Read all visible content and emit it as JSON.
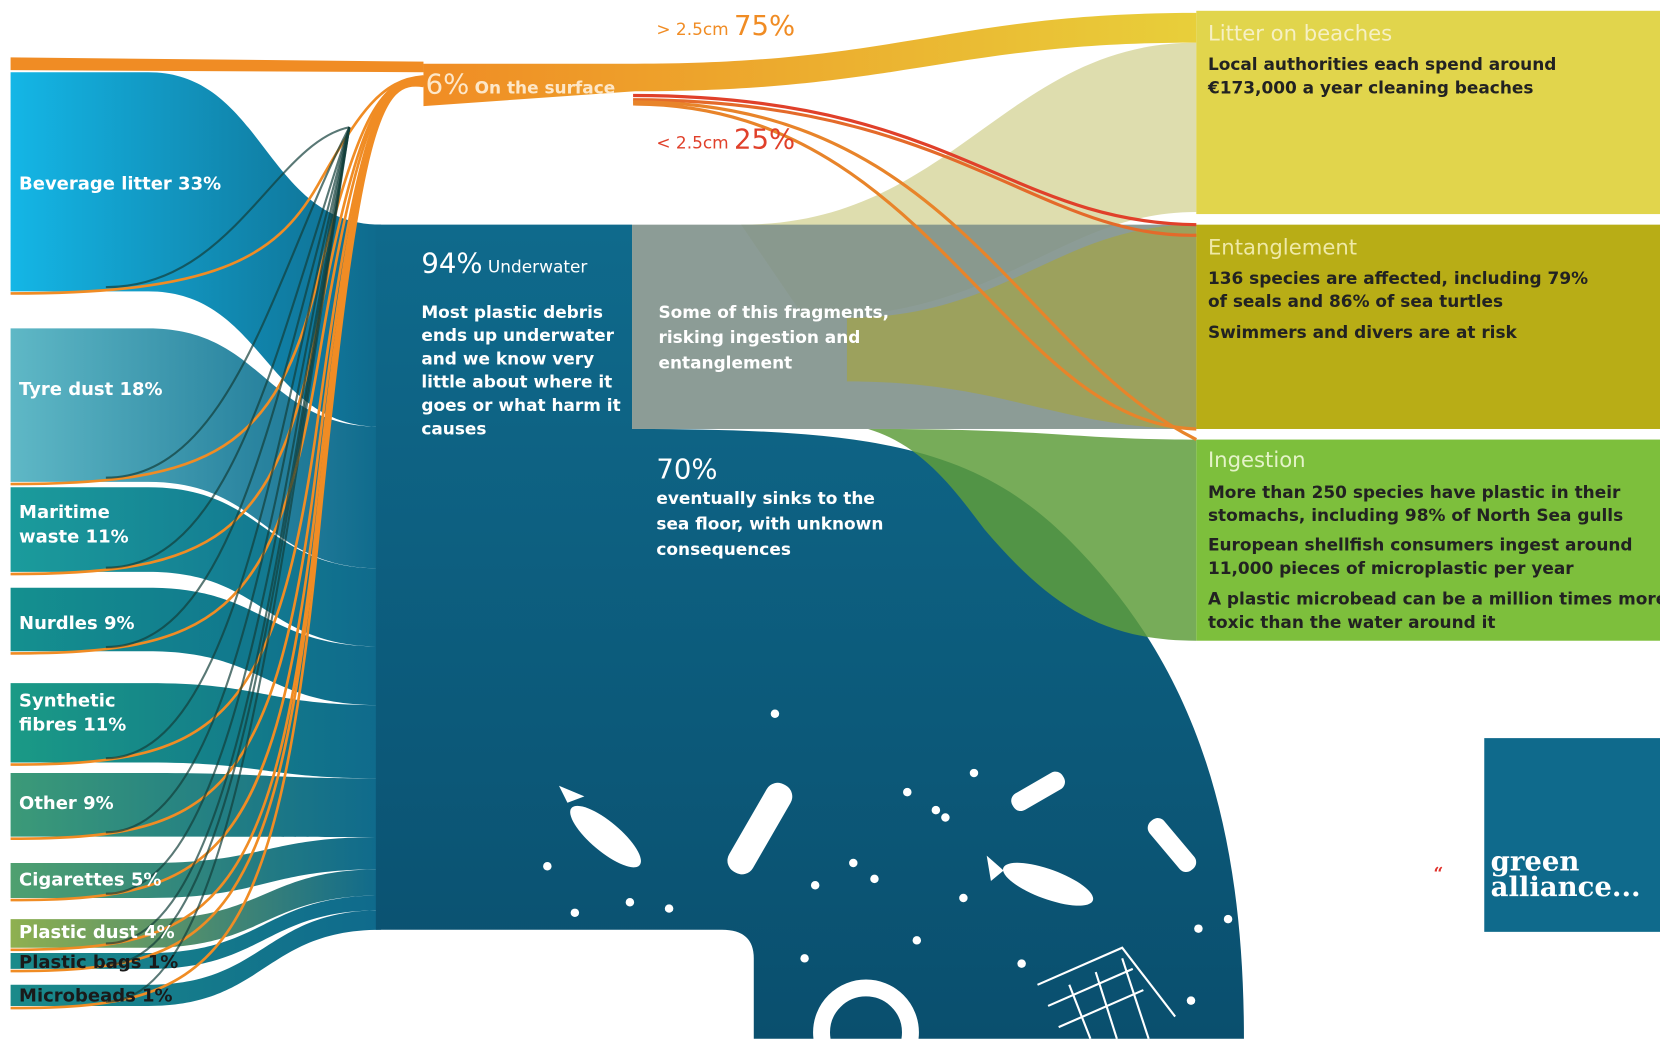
{
  "sources": [
    {
      "lines": [
        "Beverage litter 33%"
      ]
    },
    {
      "lines": [
        "Tyre dust 18%"
      ]
    },
    {
      "lines": [
        "Maritime",
        "waste 11%"
      ]
    },
    {
      "lines": [
        "Nurdles 9%"
      ]
    },
    {
      "lines": [
        "Synthetic",
        "fibres 11%"
      ]
    },
    {
      "lines": [
        "Other 9%"
      ]
    },
    {
      "lines": [
        "Cigarettes 5%"
      ]
    },
    {
      "lines": [
        "Plastic dust 4%"
      ]
    },
    {
      "lines": [
        "Plastic bags 1%"
      ]
    },
    {
      "lines": [
        "Microbeads 1%"
      ]
    }
  ],
  "surface": {
    "percent": "6%",
    "label": "On the surface"
  },
  "large": {
    "size": "> 2.5cm",
    "percent": "75%"
  },
  "small": {
    "size": "< 2.5cm",
    "percent": "25%"
  },
  "underwater": {
    "percent": "94%",
    "label": "Underwater",
    "text": [
      "Most plastic debris",
      "ends up underwater",
      "and we know very",
      "little about where it",
      "goes or what harm it",
      "causes"
    ]
  },
  "fragments": {
    "text": [
      "Some of this fragments,",
      "risking ingestion and",
      "entanglement"
    ]
  },
  "sinks": {
    "percent": "70%",
    "text": [
      "eventually sinks to the",
      "sea floor, with unknown",
      "consequences"
    ]
  },
  "outcomes": [
    {
      "title": "Litter on beaches",
      "paragraphs": [
        [
          "Local authorities each spend around",
          "€173,000 a year cleaning beaches"
        ]
      ]
    },
    {
      "title": "Entanglement",
      "paragraphs": [
        [
          "136 species are affected, including 79%",
          "of seals and 86% of sea turtles"
        ],
        [
          "Swimmers and divers are at risk"
        ]
      ]
    },
    {
      "title": "Ingestion",
      "paragraphs": [
        [
          "More than 250 species have plastic in their",
          "stomachs, including 98% of North Sea gulls"
        ],
        [
          "European shellfish consumers ingest around",
          "11,000 pieces of microplastic per year"
        ],
        [
          "A plastic microbead can be a million times more",
          "toxic than the water around it"
        ]
      ]
    }
  ],
  "logo": {
    "lines": [
      "green",
      "alliance..."
    ]
  }
}
